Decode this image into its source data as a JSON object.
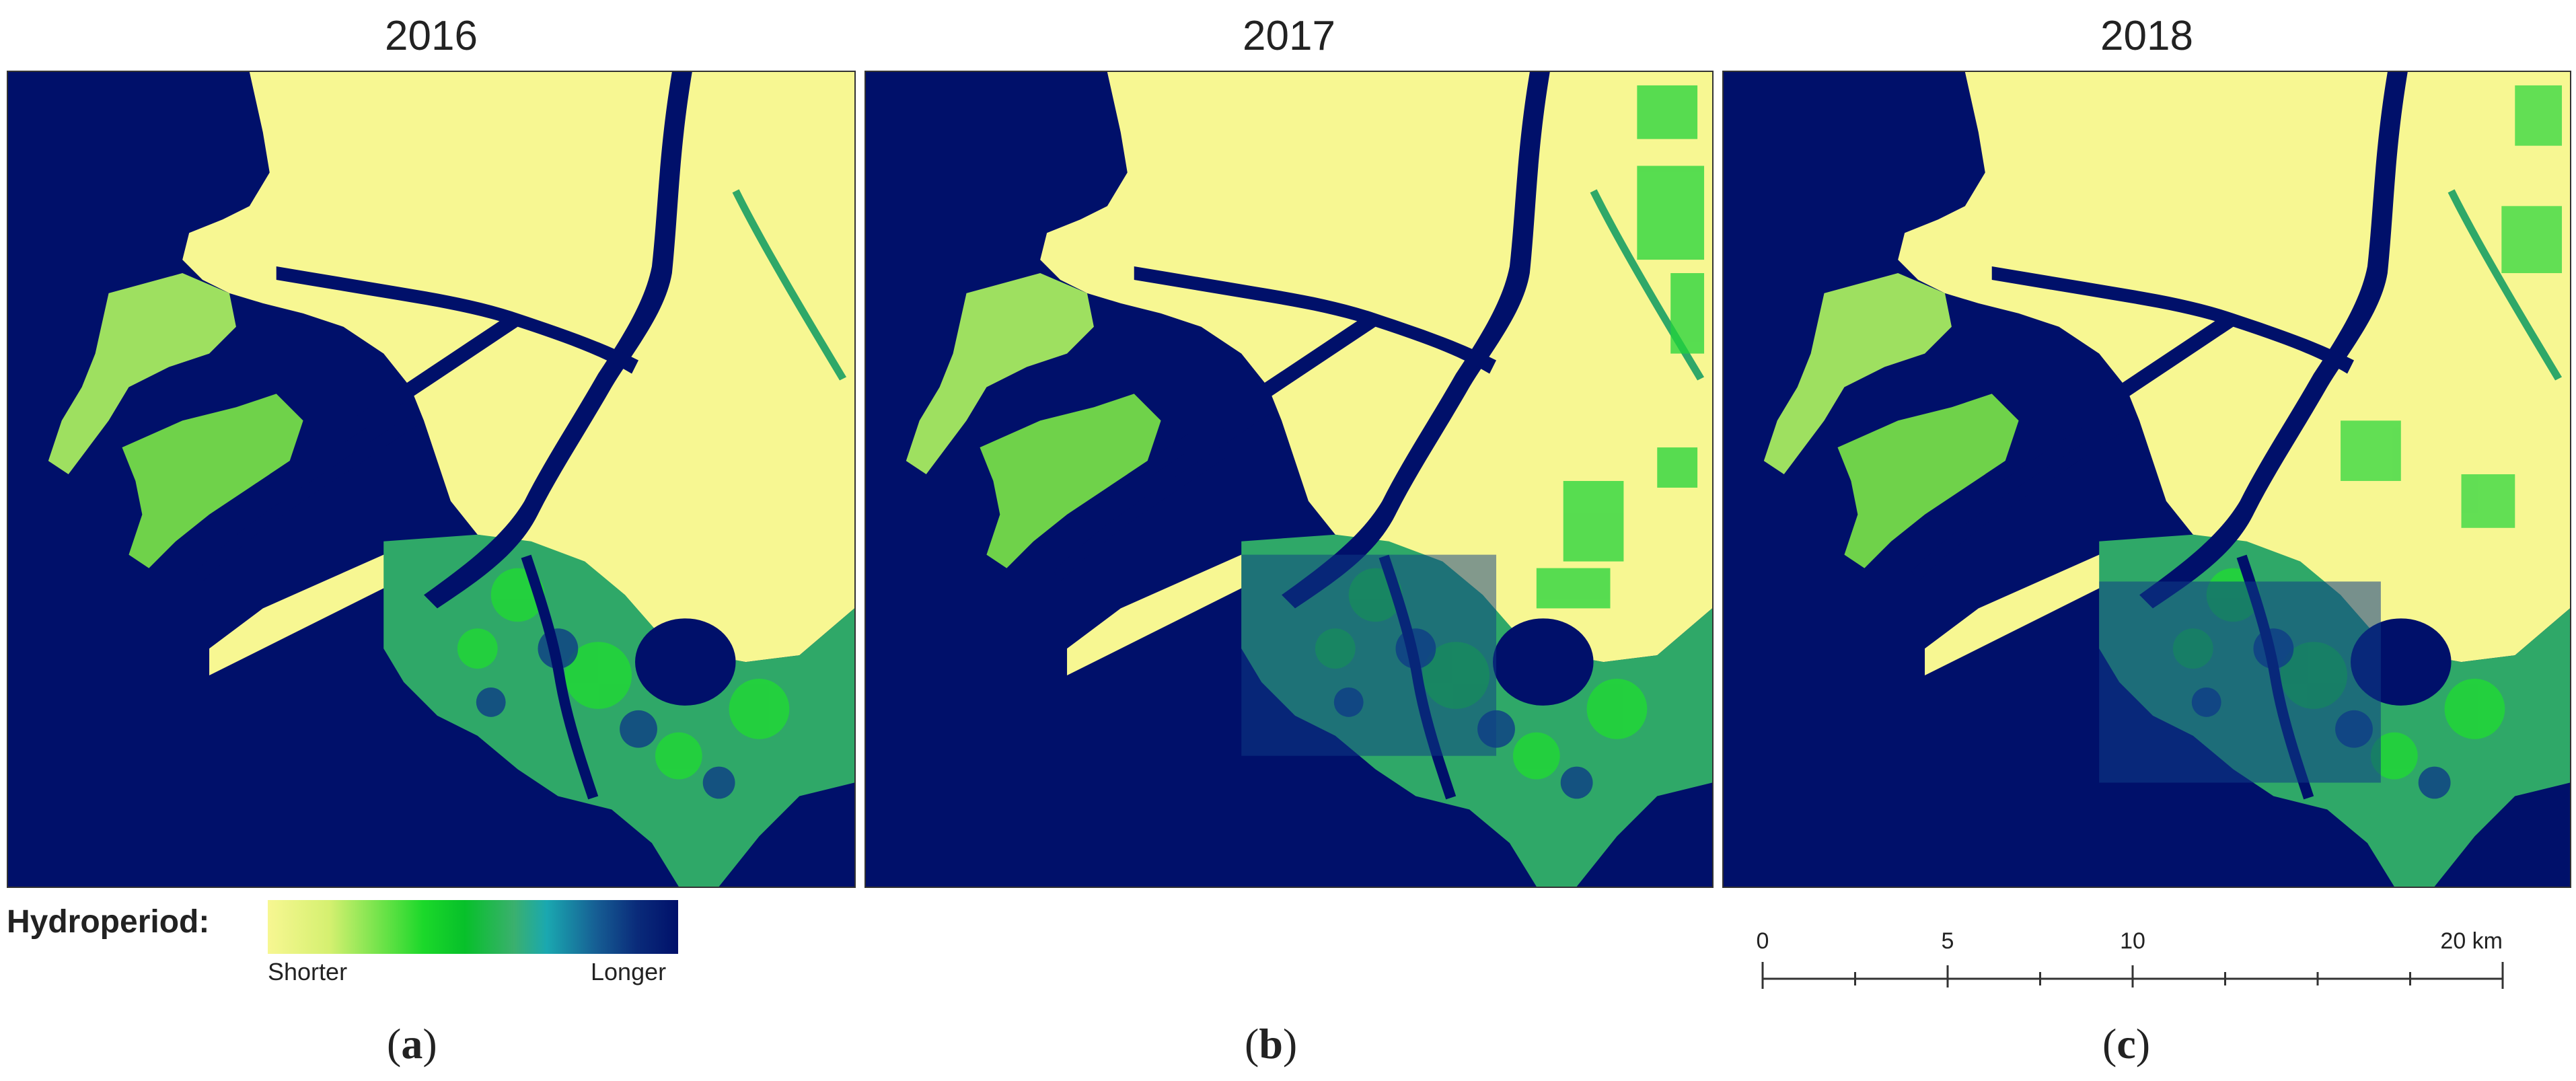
{
  "panels": [
    {
      "year": "2016",
      "letter": "a"
    },
    {
      "year": "2017",
      "letter": "b"
    },
    {
      "year": "2018",
      "letter": "c"
    }
  ],
  "legend": {
    "title": "Hydroperiod:",
    "low_label": "Shorter",
    "high_label": "Longer",
    "colors": {
      "shorter": "#f7f792",
      "mid": "#1bd82a",
      "longer": "#00106a"
    }
  },
  "scalebar": {
    "labels": [
      "0",
      "5",
      "10",
      "20 km"
    ],
    "values_km": [
      0,
      5,
      10,
      20
    ]
  },
  "colors": {
    "water": "#00106a",
    "dry_land": "#f7f792",
    "wet_vegetation": "#2fa868",
    "bright_green": "#22d43a"
  }
}
